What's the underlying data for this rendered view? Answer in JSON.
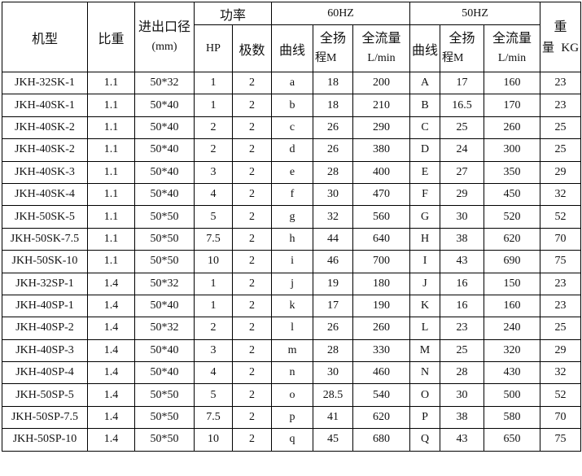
{
  "header": {
    "model": "机型",
    "sg": "比重",
    "port": "进出口径",
    "port_unit": "(mm)",
    "power": "功率",
    "hp": "HP",
    "poles": "极数",
    "hz60": "60HZ",
    "hz50": "50HZ",
    "curve": "曲线",
    "head_1": "全扬",
    "head_2": "程M",
    "flow_1": "全流量",
    "flow_2": "L/min",
    "weight_1": "重",
    "weight_2": "量",
    "weight_unit": "KG"
  },
  "rows": [
    [
      "JKH-32SK-1",
      "1.1",
      "50*32",
      "1",
      "2",
      "a",
      "18",
      "200",
      "A",
      "17",
      "160",
      "23"
    ],
    [
      "JKH-40SK-1",
      "1.1",
      "50*40",
      "1",
      "2",
      "b",
      "18",
      "210",
      "B",
      "16.5",
      "170",
      "23"
    ],
    [
      "JKH-40SK-2",
      "1.1",
      "50*40",
      "2",
      "2",
      "c",
      "26",
      "290",
      "C",
      "25",
      "260",
      "25"
    ],
    [
      "JKH-40SK-2",
      "1.1",
      "50*40",
      "2",
      "2",
      "d",
      "26",
      "380",
      "D",
      "24",
      "300",
      "25"
    ],
    [
      "JKH-40SK-3",
      "1.1",
      "50*40",
      "3",
      "2",
      "e",
      "28",
      "400",
      "E",
      "27",
      "350",
      "29"
    ],
    [
      "JKH-40SK-4",
      "1.1",
      "50*40",
      "4",
      "2",
      "f",
      "30",
      "470",
      "F",
      "29",
      "450",
      "32"
    ],
    [
      "JKH-50SK-5",
      "1.1",
      "50*50",
      "5",
      "2",
      "g",
      "32",
      "560",
      "G",
      "30",
      "520",
      "52"
    ],
    [
      "JKH-50SK-7.5",
      "1.1",
      "50*50",
      "7.5",
      "2",
      "h",
      "44",
      "640",
      "H",
      "38",
      "620",
      "70"
    ],
    [
      "JKH-50SK-10",
      "1.1",
      "50*50",
      "10",
      "2",
      "i",
      "46",
      "700",
      "I",
      "43",
      "690",
      "75"
    ],
    [
      "JKH-32SP-1",
      "1.4",
      "50*32",
      "1",
      "2",
      "j",
      "19",
      "180",
      "J",
      "16",
      "150",
      "23"
    ],
    [
      "JKH-40SP-1",
      "1.4",
      "50*40",
      "1",
      "2",
      "k",
      "17",
      "190",
      "K",
      "16",
      "160",
      "23"
    ],
    [
      "JKH-40SP-2",
      "1.4",
      "50*32",
      "2",
      "2",
      "l",
      "26",
      "260",
      "L",
      "23",
      "240",
      "25"
    ],
    [
      "JKH-40SP-3",
      "1.4",
      "50*40",
      "3",
      "2",
      "m",
      "28",
      "330",
      "M",
      "25",
      "320",
      "29"
    ],
    [
      "JKH-40SP-4",
      "1.4",
      "50*40",
      "4",
      "2",
      "n",
      "30",
      "460",
      "N",
      "28",
      "430",
      "32"
    ],
    [
      "JKH-50SP-5",
      "1.4",
      "50*50",
      "5",
      "2",
      "o",
      "28.5",
      "540",
      "O",
      "30",
      "500",
      "52"
    ],
    [
      "JKH-50SP-7.5",
      "1.4",
      "50*50",
      "7.5",
      "2",
      "p",
      "41",
      "620",
      "P",
      "38",
      "580",
      "70"
    ],
    [
      "JKH-50SP-10",
      "1.4",
      "50*50",
      "10",
      "2",
      "q",
      "45",
      "680",
      "Q",
      "43",
      "650",
      "75"
    ]
  ]
}
